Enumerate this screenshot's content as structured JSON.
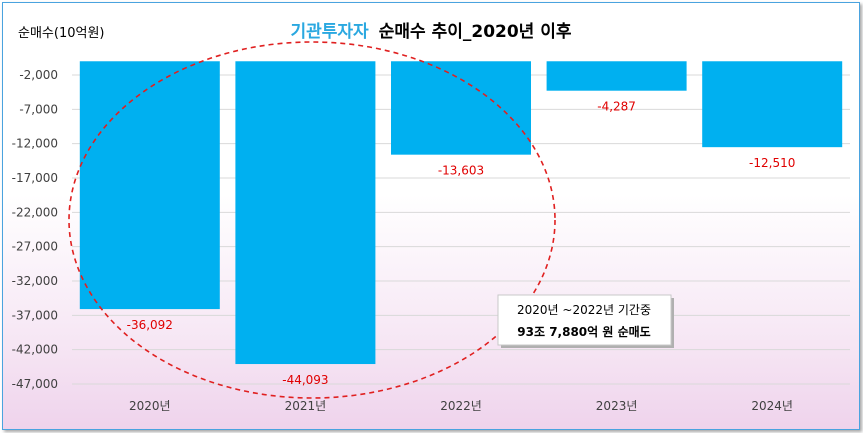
{
  "chart_data": {
    "type": "bar",
    "title_highlight": "기관투자자",
    "title_rest": "순매수 추이_2020년 이후",
    "ylabel": "순매수(10억원)",
    "xlabel": "",
    "categories": [
      "2020년",
      "2021년",
      "2022년",
      "2023년",
      "2024년"
    ],
    "values": [
      -36092,
      -44093,
      -13603,
      -4287,
      -12510
    ],
    "value_labels": [
      "-36,092",
      "-44,093",
      "-13,603",
      "-4,287",
      "-12,510"
    ],
    "yticks": [
      -2000,
      -7000,
      -12000,
      -17000,
      -22000,
      -27000,
      -32000,
      -37000,
      -42000,
      -47000
    ],
    "ytick_labels": [
      "-2,000",
      "-7,000",
      "-12,000",
      "-17,000",
      "-22,000",
      "-27,000",
      "-32,000",
      "-37,000",
      "-42,000",
      "-47,000"
    ],
    "ylim": [
      -48000,
      2250
    ],
    "grid": true,
    "bar_color": "#00b0f0",
    "label_color": "#e00000",
    "annotation": {
      "line1": "2020년 ~2022년 기간중",
      "line2": "93조 7,880억 원 순매도"
    }
  }
}
